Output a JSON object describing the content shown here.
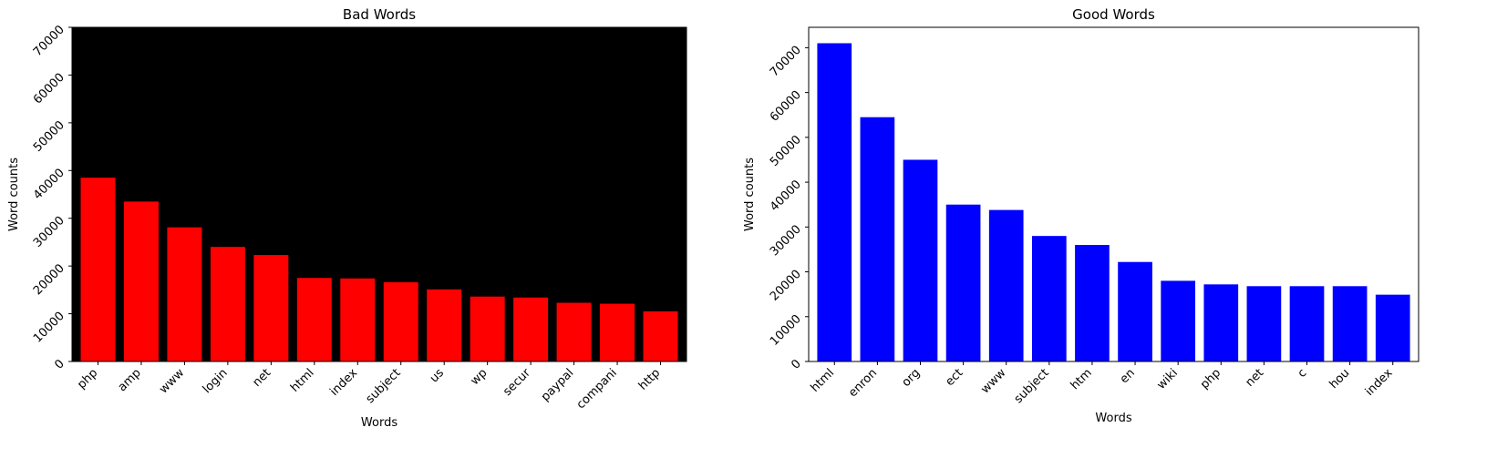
{
  "chart_data": [
    {
      "type": "bar",
      "title": "Bad Words",
      "xlabel": "Words",
      "ylabel": "Word counts",
      "categories": [
        "php",
        "amp",
        "www",
        "login",
        "net",
        "html",
        "index",
        "subject",
        "us",
        "wp",
        "secur",
        "paypal",
        "compani",
        "http"
      ],
      "values": [
        38500,
        33500,
        28100,
        24000,
        22300,
        17500,
        17400,
        16600,
        15100,
        13600,
        13400,
        12300,
        12100,
        10500
      ],
      "ylim": [
        0,
        70000
      ],
      "yticks": [
        0,
        10000,
        20000,
        30000,
        40000,
        50000,
        60000,
        70000
      ],
      "bar_color": "#ff0000",
      "background_color": "#000000",
      "grid": false
    },
    {
      "type": "bar",
      "title": "Good Words",
      "xlabel": "Words",
      "ylabel": "Word counts",
      "categories": [
        "html",
        "enron",
        "org",
        "ect",
        "www",
        "subject",
        "htm",
        "en",
        "wiki",
        "php",
        "net",
        "c",
        "hou",
        "index"
      ],
      "values": [
        71000,
        54500,
        45000,
        35000,
        33800,
        28000,
        26000,
        22200,
        18000,
        17200,
        16800,
        16800,
        16800,
        14900
      ],
      "ylim": [
        0,
        74550
      ],
      "yticks": [
        0,
        10000,
        20000,
        30000,
        40000,
        50000,
        60000,
        70000
      ],
      "bar_color": "#0000ff",
      "background_color": "#ffffff",
      "grid": false
    }
  ]
}
